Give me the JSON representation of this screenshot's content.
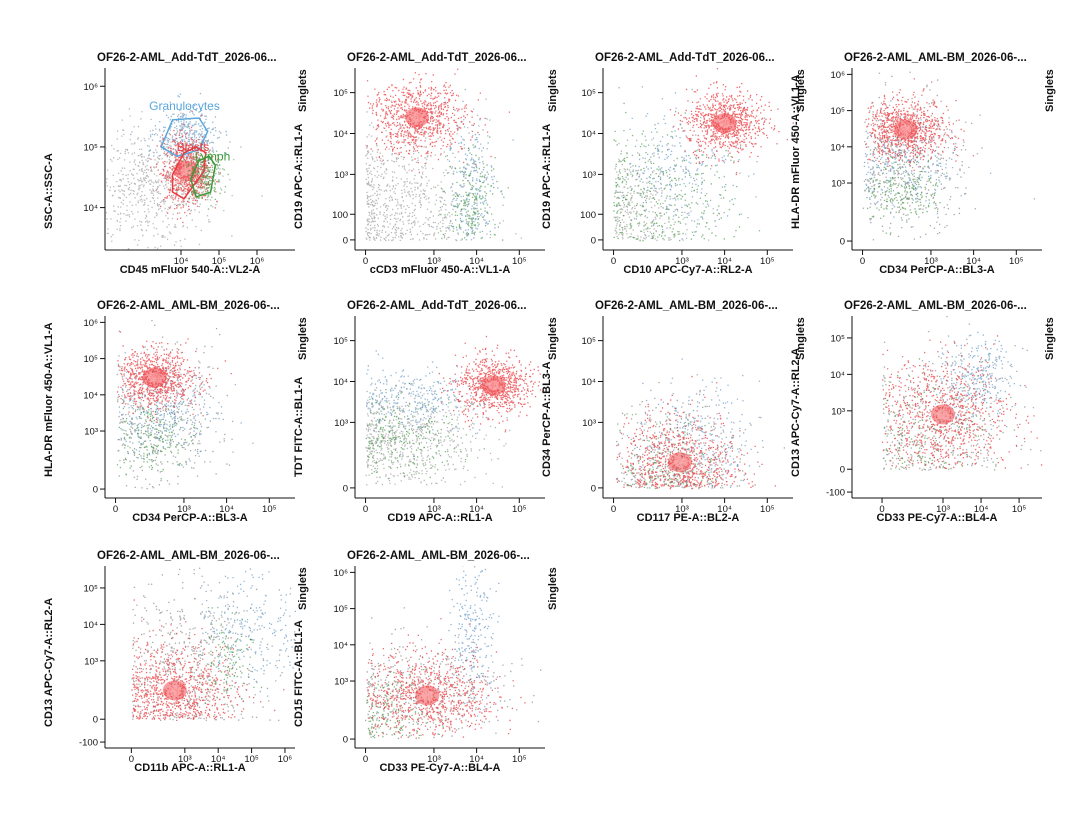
{
  "chart_data": [
    {
      "type": "scatter",
      "title": "OF26-2-AML_Add-TdT_2026-06...",
      "gate_label": "Singlets",
      "xlabel": "CD45 mFluor 540-A::VL2-A",
      "ylabel": "SSC-A::SSC-A",
      "x_scale": "log",
      "y_scale": "log",
      "xlim": [
        100,
        10000000
      ],
      "ylim": [
        2000,
        2000000
      ],
      "x_ticks": [
        {
          "v": 10000,
          "label": "10⁴"
        },
        {
          "v": 100000,
          "label": "10⁵"
        },
        {
          "v": 1000000,
          "label": "10⁶"
        }
      ],
      "y_ticks": [
        {
          "v": 10000,
          "label": "10⁴"
        },
        {
          "v": 100000,
          "label": "10⁵"
        },
        {
          "v": 1000000,
          "label": "10⁶"
        }
      ],
      "gates": [
        {
          "name": "Granulocytes",
          "color": "#5aa7dc",
          "poly": [
            [
              3000,
              100000
            ],
            [
              6000,
              280000
            ],
            [
              30000,
              300000
            ],
            [
              50000,
              180000
            ],
            [
              30000,
              90000
            ],
            [
              8000,
              70000
            ]
          ]
        },
        {
          "name": "Blasts",
          "color": "#e8393e",
          "poly": [
            [
              6000,
              35000
            ],
            [
              6000,
              18000
            ],
            [
              12000,
              14000
            ],
            [
              40000,
              40000
            ],
            [
              45000,
              80000
            ],
            [
              25000,
              100000
            ],
            [
              12000,
              80000
            ]
          ]
        },
        {
          "name": "Lymph",
          "color": "#3a9a3a",
          "poly": [
            [
              18000,
              30000
            ],
            [
              25000,
              15000
            ],
            [
              60000,
              18000
            ],
            [
              80000,
              50000
            ],
            [
              55000,
              70000
            ],
            [
              30000,
              60000
            ]
          ]
        }
      ],
      "gate_label_text": {
        "Granulocytes": "Granulocytes",
        "Blasts": "Blasts",
        "Lymph": "Lymph"
      },
      "series": [
        {
          "name": "",
          "color": "#8c8c8c",
          "cx": 1500,
          "cy": 25000,
          "sx": 0.45,
          "sy": 0.25,
          "n": 700
        },
        {
          "name": "Granulocytes",
          "color": "#4a86b8",
          "cx": 14000,
          "cy": 150000,
          "sx": 0.2,
          "sy": 0.12,
          "n": 350
        },
        {
          "name": "Blasts",
          "color": "#e8393e",
          "cx": 14000,
          "cy": 40000,
          "sx": 0.16,
          "sy": 0.14,
          "n": 700
        },
        {
          "name": "Lymph",
          "color": "#2e8b2e",
          "cx": 40000,
          "cy": 35000,
          "sx": 0.12,
          "sy": 0.1,
          "n": 250
        }
      ]
    },
    {
      "type": "scatter",
      "title": "OF26-2-AML_Add-TdT_2026-06...",
      "gate_label": "Singlets",
      "xlabel": "cCD3 mFluor 450-A::VL1-A",
      "ylabel": "CD19 APC-A::RL1-A",
      "x_scale": "biex",
      "y_scale": "biex",
      "xlim": [
        -30,
        400000
      ],
      "ylim": [
        -30,
        400000
      ],
      "x_ticks": [
        {
          "v": 0,
          "label": "0"
        },
        {
          "v": 1000,
          "label": "10³"
        },
        {
          "v": 10000,
          "label": "10⁴"
        },
        {
          "v": 100000,
          "label": "10⁵"
        }
      ],
      "y_ticks": [
        {
          "v": 0,
          "label": "0"
        },
        {
          "v": 100,
          "label": "100"
        },
        {
          "v": 1000,
          "label": "10³"
        },
        {
          "v": 10000,
          "label": "10⁴"
        },
        {
          "v": 100000,
          "label": "10⁵"
        }
      ],
      "series": [
        {
          "name": "",
          "color": "#8c8c8c",
          "cx": 150,
          "cy": 300,
          "sx": 0.45,
          "sy": 0.45,
          "n": 700
        },
        {
          "name": "Blasts",
          "color": "#e8393e",
          "cx": 400,
          "cy": 25000,
          "sx": 0.3,
          "sy": 0.22,
          "n": 800
        },
        {
          "name": "Granulocytes",
          "color": "#4a86b8",
          "cx": 7000,
          "cy": 600,
          "sx": 0.15,
          "sy": 0.45,
          "n": 250
        },
        {
          "name": "Lymph",
          "color": "#2e8b2e",
          "cx": 7000,
          "cy": 200,
          "sx": 0.15,
          "sy": 0.3,
          "n": 200
        }
      ]
    },
    {
      "type": "scatter",
      "title": "OF26-2-AML_Add-TdT_2026-06...",
      "gate_label": "Singlets",
      "xlabel": "CD10 APC-Cy7-A::RL2-A",
      "ylabel": "CD19 APC-A::RL1-A",
      "x_scale": "biex",
      "y_scale": "biex",
      "xlim": [
        -30,
        400000
      ],
      "ylim": [
        -30,
        400000
      ],
      "x_ticks": [
        {
          "v": 0,
          "label": "0"
        },
        {
          "v": 1000,
          "label": "10³"
        },
        {
          "v": 10000,
          "label": "10⁴"
        },
        {
          "v": 100000,
          "label": "10⁵"
        }
      ],
      "y_ticks": [
        {
          "v": 0,
          "label": "0"
        },
        {
          "v": 100,
          "label": "100"
        },
        {
          "v": 1000,
          "label": "10³"
        },
        {
          "v": 10000,
          "label": "10⁴"
        },
        {
          "v": 100000,
          "label": "10⁵"
        }
      ],
      "series": [
        {
          "name": "",
          "color": "#8c8c8c",
          "cx": 100,
          "cy": 150,
          "sx": 0.35,
          "sy": 0.35,
          "n": 300
        },
        {
          "name": "Lymph",
          "color": "#2e8b2e",
          "cx": 200,
          "cy": 250,
          "sx": 0.45,
          "sy": 0.45,
          "n": 350
        },
        {
          "name": "Granulocytes",
          "color": "#4a86b8",
          "cx": 900,
          "cy": 1500,
          "sx": 0.4,
          "sy": 0.35,
          "n": 250
        },
        {
          "name": "Blasts",
          "color": "#e8393e",
          "cx": 10000,
          "cy": 18000,
          "sx": 0.22,
          "sy": 0.2,
          "n": 800
        }
      ]
    },
    {
      "type": "scatter",
      "title": "OF26-2-AML_AML-BM_2026-06-...",
      "gate_label": "Singlets",
      "xlabel": "CD34 PerCP-A::BL3-A",
      "ylabel": "HLA-DR mFluor 450-A::VL1-A",
      "x_scale": "biex",
      "y_scale": "biex",
      "xlim": [
        -30,
        400000
      ],
      "ylim": [
        -30,
        1500000
      ],
      "x_ticks": [
        {
          "v": 0,
          "label": "0"
        },
        {
          "v": 1000,
          "label": "10³"
        },
        {
          "v": 10000,
          "label": "10⁴"
        },
        {
          "v": 100000,
          "label": "10⁵"
        }
      ],
      "y_ticks": [
        {
          "v": 0,
          "label": "0"
        },
        {
          "v": 1000,
          "label": "10³"
        },
        {
          "v": 10000,
          "label": "10⁴"
        },
        {
          "v": 100000,
          "label": "10⁵"
        },
        {
          "v": 1000000,
          "label": "10⁶"
        }
      ],
      "series": [
        {
          "name": "",
          "color": "#6f6f6f",
          "cx": 250,
          "cy": 3000,
          "sx": 0.35,
          "sy": 0.5,
          "n": 400
        },
        {
          "name": "Granulocytes",
          "color": "#4a86b8",
          "cx": 250,
          "cy": 3000,
          "sx": 0.35,
          "sy": 0.3,
          "n": 300
        },
        {
          "name": "Lymph",
          "color": "#2e8b2e",
          "cx": 200,
          "cy": 700,
          "sx": 0.25,
          "sy": 0.25,
          "n": 200
        },
        {
          "name": "Blasts",
          "color": "#e8393e",
          "cx": 250,
          "cy": 30000,
          "sx": 0.25,
          "sy": 0.2,
          "n": 800
        }
      ]
    },
    {
      "type": "scatter",
      "title": "OF26-2-AML_AML-BM_2026-06-...",
      "gate_label": "Singlets",
      "xlabel": "CD34 PerCP-A::BL3-A",
      "ylabel": "HLA-DR mFluor 450-A::VL1-A",
      "x_scale": "biex",
      "y_scale": "biex",
      "xlim": [
        -30,
        400000
      ],
      "ylim": [
        -30,
        1500000
      ],
      "x_ticks": [
        {
          "v": 0,
          "label": "0"
        },
        {
          "v": 1000,
          "label": "10³"
        },
        {
          "v": 10000,
          "label": "10⁴"
        },
        {
          "v": 100000,
          "label": "10⁵"
        }
      ],
      "y_ticks": [
        {
          "v": 0,
          "label": "0"
        },
        {
          "v": 1000,
          "label": "10³"
        },
        {
          "v": 10000,
          "label": "10⁴"
        },
        {
          "v": 100000,
          "label": "10⁵"
        },
        {
          "v": 1000000,
          "label": "10⁶"
        }
      ],
      "series": [
        {
          "name": "",
          "color": "#6f6f6f",
          "cx": 250,
          "cy": 3000,
          "sx": 0.35,
          "sy": 0.5,
          "n": 400
        },
        {
          "name": "Granulocytes",
          "color": "#4a86b8",
          "cx": 300,
          "cy": 3000,
          "sx": 0.35,
          "sy": 0.3,
          "n": 300
        },
        {
          "name": "Lymph",
          "color": "#2e8b2e",
          "cx": 200,
          "cy": 700,
          "sx": 0.25,
          "sy": 0.25,
          "n": 200
        },
        {
          "name": "Blasts",
          "color": "#e8393e",
          "cx": 200,
          "cy": 30000,
          "sx": 0.25,
          "sy": 0.2,
          "n": 800
        }
      ]
    },
    {
      "type": "scatter",
      "title": "OF26-2-AML_Add-TdT_2026-06...",
      "gate_label": "Singlets",
      "xlabel": "CD19 APC-A::RL1-A",
      "ylabel": "TDT FITC-A::BL1-A",
      "x_scale": "biex",
      "y_scale": "biex",
      "xlim": [
        -30,
        400000
      ],
      "ylim": [
        -30,
        400000
      ],
      "x_ticks": [
        {
          "v": 0,
          "label": "0"
        },
        {
          "v": 1000,
          "label": "10³"
        },
        {
          "v": 10000,
          "label": "10⁴"
        },
        {
          "v": 100000,
          "label": "10⁵"
        }
      ],
      "y_ticks": [
        {
          "v": 0,
          "label": "0"
        },
        {
          "v": 1000,
          "label": "10³"
        },
        {
          "v": 10000,
          "label": "10⁴"
        },
        {
          "v": 100000,
          "label": "10⁵"
        }
      ],
      "series": [
        {
          "name": "",
          "color": "#8c8c8c",
          "cx": 200,
          "cy": 400,
          "sx": 0.45,
          "sy": 0.3,
          "n": 600
        },
        {
          "name": "Granulocytes",
          "color": "#4a86b8",
          "cx": 300,
          "cy": 3500,
          "sx": 0.4,
          "sy": 0.2,
          "n": 300
        },
        {
          "name": "Lymph",
          "color": "#2e8b2e",
          "cx": 150,
          "cy": 400,
          "sx": 0.35,
          "sy": 0.25,
          "n": 250
        },
        {
          "name": "Blasts",
          "color": "#e8393e",
          "cx": 25000,
          "cy": 8000,
          "sx": 0.22,
          "sy": 0.18,
          "n": 800
        }
      ]
    },
    {
      "type": "scatter",
      "title": "OF26-2-AML_AML-BM_2026-06-...",
      "gate_label": "Singlets",
      "xlabel": "CD117 PE-A::BL2-A",
      "ylabel": "CD34 PerCP-A::BL3-A",
      "x_scale": "biex",
      "y_scale": "biex",
      "xlim": [
        -30,
        400000
      ],
      "ylim": [
        -30,
        400000
      ],
      "x_ticks": [
        {
          "v": 0,
          "label": "0"
        },
        {
          "v": 1000,
          "label": "10³"
        },
        {
          "v": 10000,
          "label": "10⁴"
        },
        {
          "v": 100000,
          "label": "10⁵"
        }
      ],
      "y_ticks": [
        {
          "v": 0,
          "label": "0"
        },
        {
          "v": 1000,
          "label": "10³"
        },
        {
          "v": 10000,
          "label": "10⁴"
        },
        {
          "v": 100000,
          "label": "10⁵"
        }
      ],
      "series": [
        {
          "name": "",
          "color": "#6f6f6f",
          "cx": 700,
          "cy": 100,
          "sx": 0.4,
          "sy": 0.4,
          "n": 400
        },
        {
          "name": "Granulocytes",
          "color": "#4a86b8",
          "cx": 2500,
          "cy": 400,
          "sx": 0.35,
          "sy": 0.35,
          "n": 250
        },
        {
          "name": "Lymph",
          "color": "#2e8b2e",
          "cx": 500,
          "cy": 80,
          "sx": 0.3,
          "sy": 0.3,
          "n": 150
        },
        {
          "name": "Blasts",
          "color": "#e8393e",
          "cx": 900,
          "cy": 100,
          "sx": 0.35,
          "sy": 0.3,
          "n": 700
        }
      ]
    },
    {
      "type": "scatter",
      "title": "OF26-2-AML_AML-BM_2026-06-...",
      "gate_label": "Singlets",
      "xlabel": "CD33 PE-Cy7-A::BL4-A",
      "ylabel": "CD13 APC-Cy7-A::RL2-A",
      "x_scale": "biex",
      "y_scale": "biex",
      "xlim": [
        -150,
        400000
      ],
      "ylim": [
        -150,
        400000
      ],
      "x_ticks": [
        {
          "v": 0,
          "label": "0"
        },
        {
          "v": 1000,
          "label": "10³"
        },
        {
          "v": 10000,
          "label": "10⁴"
        },
        {
          "v": 100000,
          "label": "10⁵"
        }
      ],
      "y_ticks": [
        {
          "v": -100,
          "label": "-100"
        },
        {
          "v": 0,
          "label": "0"
        },
        {
          "v": 1000,
          "label": "10³"
        },
        {
          "v": 10000,
          "label": "10⁴"
        },
        {
          "v": 100000,
          "label": "10⁵"
        }
      ],
      "series": [
        {
          "name": "",
          "color": "#6f6f6f",
          "cx": 700,
          "cy": 400,
          "sx": 0.5,
          "sy": 0.5,
          "n": 400
        },
        {
          "name": "Lymph",
          "color": "#2e8b2e",
          "cx": 300,
          "cy": 300,
          "sx": 0.4,
          "sy": 0.4,
          "n": 150
        },
        {
          "name": "Granulocytes",
          "color": "#4a86b8",
          "cx": 7000,
          "cy": 8000,
          "sx": 0.25,
          "sy": 0.3,
          "n": 300
        },
        {
          "name": "Blasts",
          "color": "#e8393e",
          "cx": 1000,
          "cy": 800,
          "sx": 0.45,
          "sy": 0.4,
          "n": 800
        }
      ]
    },
    {
      "type": "scatter",
      "title": "OF26-2-AML_AML-BM_2026-06-...",
      "gate_label": "Singlets",
      "xlabel": "CD11b APC-A::RL1-A",
      "ylabel": "CD13 APC-Cy7-A::RL2-A",
      "x_scale": "biex",
      "y_scale": "biex",
      "xlim": [
        -150,
        2000000
      ],
      "ylim": [
        -150,
        400000
      ],
      "x_ticks": [
        {
          "v": 0,
          "label": "0"
        },
        {
          "v": 1000,
          "label": "10³"
        },
        {
          "v": 10000,
          "label": "10⁴"
        },
        {
          "v": 100000,
          "label": "10⁵"
        },
        {
          "v": 1000000,
          "label": "10⁶"
        }
      ],
      "y_ticks": [
        {
          "v": -100,
          "label": "-100"
        },
        {
          "v": 0,
          "label": "0"
        },
        {
          "v": 1000,
          "label": "10³"
        },
        {
          "v": 10000,
          "label": "10⁴"
        },
        {
          "v": 100000,
          "label": "10⁵"
        }
      ],
      "series": [
        {
          "name": "",
          "color": "#6f6f6f",
          "cx": 1000,
          "cy": 800,
          "sx": 0.55,
          "sy": 0.55,
          "n": 500
        },
        {
          "name": "Granulocytes",
          "color": "#4a86b8",
          "cx": 80000,
          "cy": 8000,
          "sx": 0.4,
          "sy": 0.4,
          "n": 250
        },
        {
          "name": "Lymph",
          "color": "#2e8b2e",
          "cx": 15000,
          "cy": 800,
          "sx": 0.2,
          "sy": 0.3,
          "n": 120
        },
        {
          "name": "Blasts",
          "color": "#e8393e",
          "cx": 500,
          "cy": 150,
          "sx": 0.45,
          "sy": 0.35,
          "n": 800
        }
      ]
    },
    {
      "type": "scatter",
      "title": "OF26-2-AML_AML-BM_2026-06-...",
      "gate_label": "Singlets",
      "xlabel": "CD33 PE-Cy7-A::BL4-A",
      "ylabel": "CD15 FITC-A::BL1-A",
      "x_scale": "biex",
      "y_scale": "biex",
      "xlim": [
        -30,
        400000
      ],
      "ylim": [
        -30,
        1500000
      ],
      "x_ticks": [
        {
          "v": 0,
          "label": "0"
        },
        {
          "v": 1000,
          "label": "10³"
        },
        {
          "v": 10000,
          "label": "10⁴"
        },
        {
          "v": 100000,
          "label": "10⁵"
        }
      ],
      "y_ticks": [
        {
          "v": 0,
          "label": "0"
        },
        {
          "v": 1000,
          "label": "10³"
        },
        {
          "v": 10000,
          "label": "10⁴"
        },
        {
          "v": 100000,
          "label": "10⁵"
        },
        {
          "v": 1000000,
          "label": "10⁶"
        }
      ],
      "series": [
        {
          "name": "",
          "color": "#6f6f6f",
          "cx": 500,
          "cy": 500,
          "sx": 0.5,
          "sy": 0.35,
          "n": 400
        },
        {
          "name": "Granulocytes",
          "color": "#4a86b8",
          "cx": 8000,
          "cy": 20000,
          "sx": 0.12,
          "sy": 0.5,
          "n": 250
        },
        {
          "name": "Lymph",
          "color": "#2e8b2e",
          "cx": 100,
          "cy": 120,
          "sx": 0.3,
          "sy": 0.3,
          "n": 150
        },
        {
          "name": "Blasts",
          "color": "#e8393e",
          "cx": 700,
          "cy": 400,
          "sx": 0.4,
          "sy": 0.3,
          "n": 800
        }
      ]
    }
  ]
}
